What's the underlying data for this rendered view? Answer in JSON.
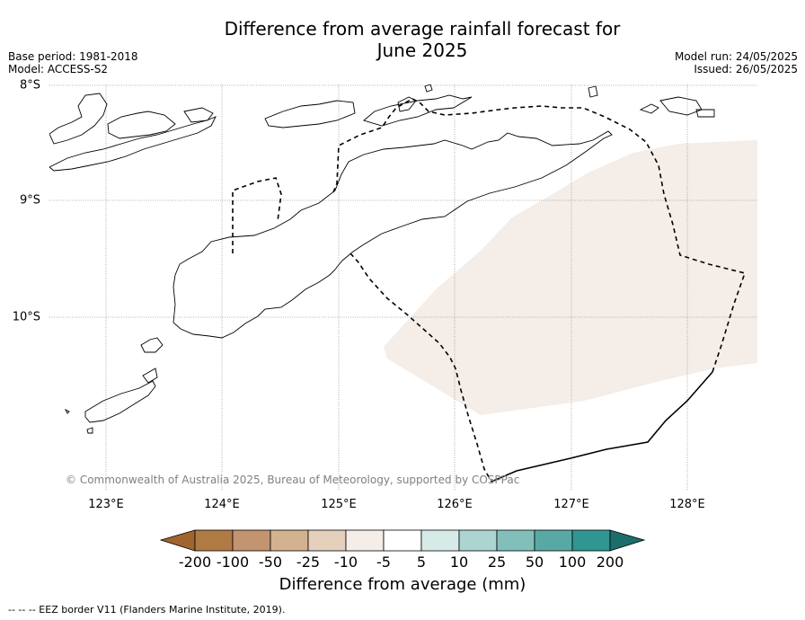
{
  "title_line1": "Difference from average rainfall forecast for",
  "title_line2": "June 2025",
  "base_period": "Base period: 1981-2018",
  "model": "Model: ACCESS-S2",
  "model_run": "Model run: 24/05/2025",
  "issued": "Issued: 26/05/2025",
  "lat_labels": [
    "8°S",
    "9°S",
    "10°S"
  ],
  "lon_labels": [
    "123°E",
    "124°E",
    "125°E",
    "126°E",
    "127°E",
    "128°E"
  ],
  "copyright": "© Commonwealth of Australia 2025, Bureau of Meteorology, supported by COSPPac",
  "colorbar": {
    "ticks": [
      "-200",
      "-100",
      "-50",
      "-25",
      "-10",
      "-5",
      "5",
      "10",
      "25",
      "50",
      "100",
      "200"
    ],
    "colors": [
      "#a0652e",
      "#b07a45",
      "#c29470",
      "#d3b290",
      "#e4d0bc",
      "#f4ede8",
      "#ffffff",
      "#d6ebe8",
      "#acd5d1",
      "#82bfbb",
      "#58a9a5",
      "#2f9692",
      "#1c6e6b"
    ],
    "label": "Difference from average (mm)"
  },
  "legend_note": "--  --  -- EEZ border V11 (Flanders Marine Institute, 2019).",
  "map_data": {
    "shaded_region_category": "-10 to -5",
    "shaded_region_color": "#f4ede8"
  }
}
